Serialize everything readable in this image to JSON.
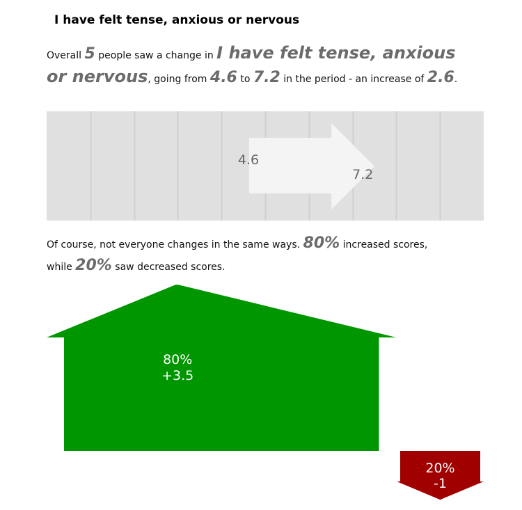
{
  "title": "I have felt tense, anxious or nervous",
  "summary": {
    "prefix": "Overall",
    "people": "5",
    "mid1": "people saw a change in",
    "measure": "I have felt tense, anxious or nervous",
    "mid2": ", going from",
    "from": "4.6",
    "mid3": "to",
    "to": "7.2",
    "mid4": "in the period - an increase of",
    "change": "2.6",
    "end": "."
  },
  "breakdown": {
    "text1": "Of course, not everyone changes in the same ways.",
    "inc_pct": "80%",
    "text2": "increased scores,",
    "text3": "while",
    "dec_pct": "20%",
    "text4": "saw decreased scores."
  },
  "colors": {
    "band": "#e0e0e0",
    "gridline": "#cfcfcf",
    "arrow": "#f4f4f4",
    "label": "#666666",
    "increase": "#009600",
    "decrease": "#a00000"
  },
  "chart_data": [
    {
      "type": "arrow-range",
      "from": 4.6,
      "to": 7.2,
      "from_label": "4.6",
      "to_label": "7.2",
      "gridlines": 10,
      "grid": true
    },
    {
      "type": "directional-bars",
      "series": [
        {
          "name": "increased",
          "share": 80,
          "change": 3.5,
          "pct_label": "80%",
          "change_label": "+3.5"
        },
        {
          "name": "decreased",
          "share": 20,
          "change": -1,
          "pct_label": "20%",
          "change_label": "-1"
        }
      ]
    }
  ]
}
